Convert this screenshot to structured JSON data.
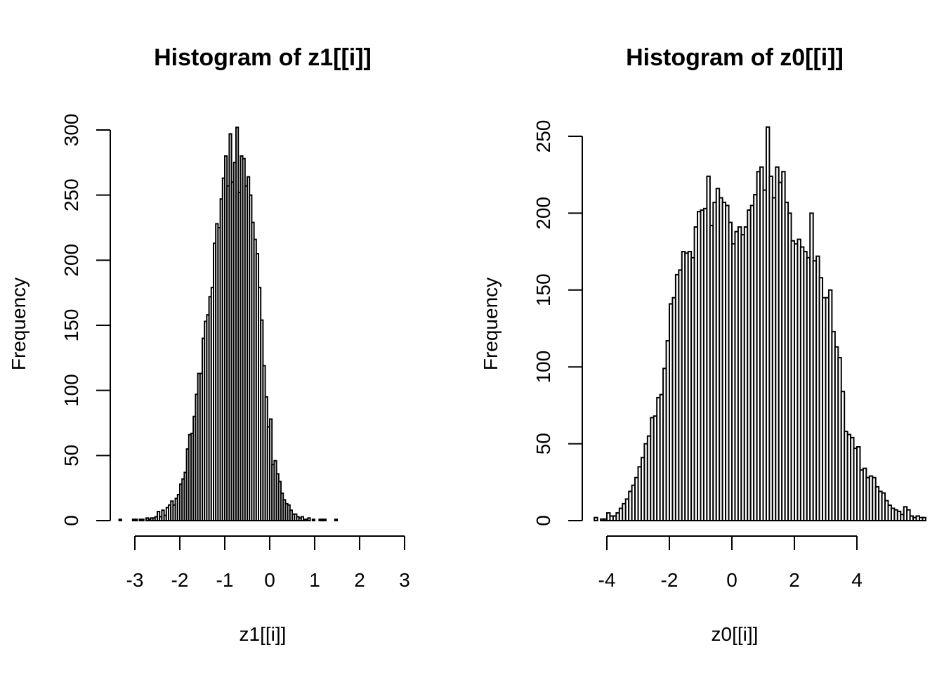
{
  "chart_data": [
    {
      "type": "bar",
      "title": "Histogram of z1[[i]]",
      "xlabel": "z1[[i]]",
      "ylabel": "Frequency",
      "xlim": [
        -3.35,
        3.0
      ],
      "ylim": [
        0,
        300
      ],
      "x_ticks": [
        -3,
        -2,
        -1,
        0,
        1,
        2,
        3
      ],
      "y_ticks": [
        0,
        50,
        100,
        150,
        200,
        250,
        300
      ],
      "bin_start": -3.35,
      "bin_width": 0.05,
      "values": [
        1,
        0,
        0,
        0,
        0,
        0,
        1,
        1,
        0,
        1,
        1,
        0,
        2,
        1,
        2,
        2,
        3,
        7,
        3,
        8,
        4,
        10,
        12,
        15,
        12,
        17,
        20,
        28,
        32,
        37,
        55,
        66,
        67,
        80,
        97,
        113,
        113,
        140,
        153,
        158,
        172,
        179,
        213,
        228,
        225,
        247,
        263,
        280,
        257,
        297,
        260,
        275,
        302,
        252,
        280,
        278,
        257,
        264,
        250,
        229,
        216,
        205,
        179,
        154,
        119,
        95,
        72,
        78,
        43,
        46,
        36,
        30,
        21,
        16,
        13,
        12,
        8,
        5,
        5,
        3,
        2,
        3,
        1,
        1,
        2,
        0,
        1,
        0,
        0,
        1,
        1,
        1,
        0,
        0,
        0,
        0,
        1
      ],
      "grid": false,
      "legend": "none"
    },
    {
      "type": "bar",
      "title": "Histogram of z0[[i]]",
      "xlabel": "z0[[i]]",
      "ylabel": "Frequency",
      "xlim": [
        -4.4,
        4.6
      ],
      "ylim": [
        0,
        250
      ],
      "x_ticks": [
        -4,
        -2,
        0,
        2,
        4
      ],
      "y_ticks": [
        0,
        50,
        100,
        150,
        200,
        250
      ],
      "bin_start": -4.4,
      "bin_width": 0.1,
      "values": [
        2,
        0,
        1,
        1,
        5,
        3,
        3,
        5,
        8,
        11,
        14,
        19,
        23,
        28,
        35,
        41,
        50,
        55,
        67,
        68,
        80,
        82,
        99,
        117,
        141,
        145,
        160,
        163,
        175,
        174,
        175,
        171,
        191,
        201,
        202,
        203,
        224,
        192,
        207,
        216,
        210,
        207,
        205,
        194,
        180,
        188,
        191,
        186,
        191,
        202,
        205,
        212,
        227,
        230,
        215,
        256,
        224,
        210,
        230,
        220,
        227,
        207,
        200,
        182,
        180,
        183,
        178,
        175,
        171,
        200,
        169,
        172,
        158,
        145,
        145,
        150,
        123,
        113,
        106,
        84,
        58,
        56,
        54,
        47,
        48,
        33,
        34,
        28,
        29,
        28,
        22,
        19,
        18,
        13,
        10,
        8,
        7,
        6,
        4,
        9,
        7,
        3,
        2,
        3,
        2,
        2
      ],
      "grid": false,
      "legend": "none"
    }
  ]
}
